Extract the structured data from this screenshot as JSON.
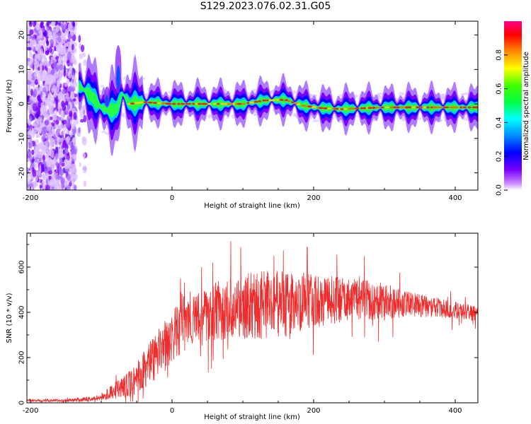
{
  "title": "S129.2023.076.02.31.G05",
  "chart_data": [
    {
      "type": "heatmap",
      "name": "spectrogram",
      "xlabel": "Height of straight line (km)",
      "ylabel": "Frequency (Hz)",
      "xlim": [
        -205,
        432
      ],
      "ylim": [
        -25,
        24
      ],
      "xticks": [
        -200,
        0,
        200,
        400
      ],
      "yticks": [
        -20,
        -10,
        0,
        10,
        20
      ],
      "colorbar": {
        "label": "Normalized spectral amplitude",
        "range": [
          0,
          1
        ],
        "ticks": [
          0.0,
          0.2,
          0.4,
          0.6,
          0.8
        ]
      },
      "ridge": [
        {
          "x": -130,
          "y": 5
        },
        {
          "x": -115,
          "y": 2.5
        },
        {
          "x": -100,
          "y": -1
        },
        {
          "x": -90,
          "y": -2
        },
        {
          "x": -78,
          "y": -1.5
        },
        {
          "x": -70,
          "y": 3
        },
        {
          "x": -60,
          "y": 0
        },
        {
          "x": -40,
          "y": 0.5
        },
        {
          "x": 0,
          "y": 0
        },
        {
          "x": 50,
          "y": 0
        },
        {
          "x": 100,
          "y": 0
        },
        {
          "x": 130,
          "y": 1
        },
        {
          "x": 160,
          "y": 1.2
        },
        {
          "x": 185,
          "y": -0.5
        },
        {
          "x": 210,
          "y": -1.2
        },
        {
          "x": 240,
          "y": -1.5
        },
        {
          "x": 300,
          "y": -1
        },
        {
          "x": 400,
          "y": -1
        },
        {
          "x": 432,
          "y": -1
        }
      ]
    },
    {
      "type": "line",
      "name": "snr",
      "xlabel": "Height of straight line (km)",
      "ylabel": "SNR (10 * v/v)",
      "xlim": [
        -205,
        432
      ],
      "ylim": [
        0,
        750
      ],
      "xticks": [
        -200,
        0,
        200,
        400
      ],
      "yticks": [
        0,
        200,
        400,
        600
      ],
      "color": "#ee2c2c",
      "envelope": [
        {
          "x": -205,
          "mid": 10,
          "amp": 5
        },
        {
          "x": -150,
          "mid": 10,
          "amp": 6
        },
        {
          "x": -110,
          "mid": 18,
          "amp": 10
        },
        {
          "x": -90,
          "mid": 40,
          "amp": 25
        },
        {
          "x": -60,
          "mid": 80,
          "amp": 60
        },
        {
          "x": -40,
          "mid": 140,
          "amp": 90
        },
        {
          "x": -20,
          "mid": 220,
          "amp": 110
        },
        {
          "x": 0,
          "mid": 300,
          "amp": 120
        },
        {
          "x": 20,
          "mid": 340,
          "amp": 110
        },
        {
          "x": 40,
          "mid": 380,
          "amp": 110
        },
        {
          "x": 60,
          "mid": 400,
          "amp": 130
        },
        {
          "x": 80,
          "mid": 420,
          "amp": 140
        },
        {
          "x": 120,
          "mid": 430,
          "amp": 150
        },
        {
          "x": 160,
          "mid": 440,
          "amp": 150
        },
        {
          "x": 200,
          "mid": 450,
          "amp": 120
        },
        {
          "x": 250,
          "mid": 460,
          "amp": 100
        },
        {
          "x": 300,
          "mid": 450,
          "amp": 80
        },
        {
          "x": 350,
          "mid": 430,
          "amp": 50
        },
        {
          "x": 400,
          "mid": 410,
          "amp": 40
        },
        {
          "x": 432,
          "mid": 390,
          "amp": 35
        }
      ]
    }
  ]
}
